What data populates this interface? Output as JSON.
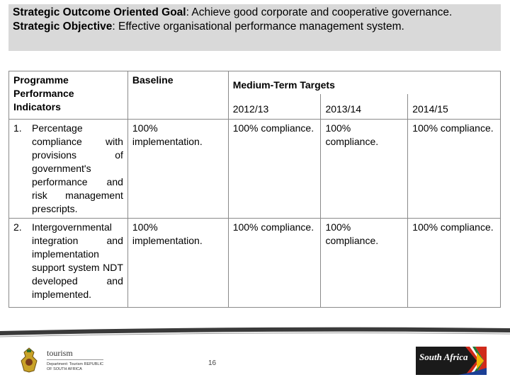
{
  "header": {
    "goal_label": "Strategic Outcome Oriented Goal",
    "goal_text": ": Achieve good corporate and cooperative governance.",
    "objective_label": "Strategic Objective",
    "objective_text": ": Effective organisational performance management system."
  },
  "table": {
    "col_indicators": "Programme Performance Indicators",
    "col_baseline": "Baseline",
    "col_targets": "Medium-Term Targets",
    "years": [
      "2012/13",
      "2013/14",
      "2014/15"
    ],
    "rows": [
      {
        "num": "1.",
        "indicator": "Percentage compliance with provisions of government's performance and risk management prescripts.",
        "baseline": "100% implementation.",
        "targets": [
          "100% compliance.",
          "100% compliance.",
          "100% compliance."
        ]
      },
      {
        "num": "2.",
        "indicator": "Intergovernmental integration and implementation support system NDT developed and implemented.",
        "baseline": "100% implementation.",
        "targets": [
          "100% compliance.",
          "100% compliance.",
          "100% compliance."
        ]
      }
    ]
  },
  "footer": {
    "dept_brand": "tourism",
    "dept_line": "Department: Tourism REPUBLIC OF SOUTH AFRICA",
    "page_number": "16",
    "logo_text": "South Africa"
  },
  "colors": {
    "header_bg": "#d9d9d9",
    "table_border": "#8a8a8a"
  }
}
